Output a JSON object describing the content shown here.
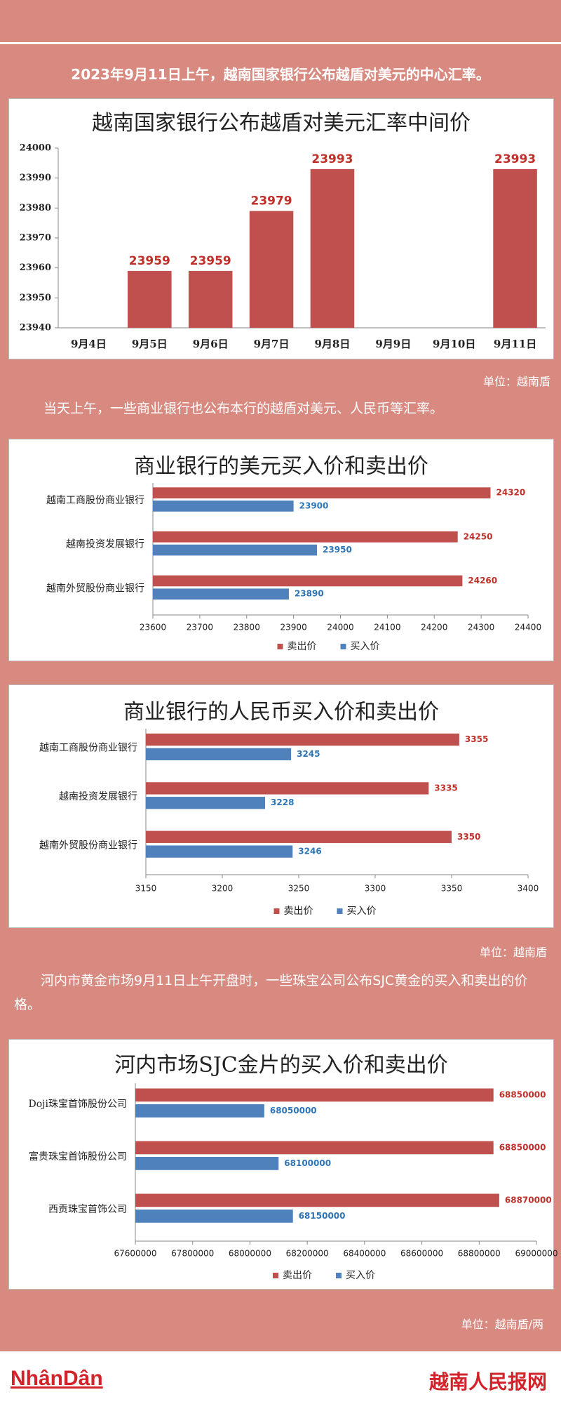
{
  "texts": {
    "intro": "2023年9月11日上午，越南国家银行公布越盾对美元的中心汇率。",
    "unit1": "单位：越南盾",
    "para2": "当天上午，一些商业银行也公布本行的越盾对美元、人民币等汇率。",
    "unit2": "单位：越南盾",
    "para3": "河内市黄金市场9月11日上午开盘时，一些珠宝公司公布SJC黄金的买入和卖出的价格。",
    "unit3": "单位：越南盾/两",
    "logo_left": "NhânDân",
    "logo_right": "越南人民报网"
  },
  "chart_data": [
    {
      "type": "bar",
      "title": "越南国家银行公布越盾对美元汇率中间价",
      "categories": [
        "9月4日",
        "9月5日",
        "9月6日",
        "9月7日",
        "9月8日",
        "9月9日",
        "9月10日",
        "9月11日"
      ],
      "values": [
        null,
        23959,
        23959,
        23979,
        23993,
        null,
        null,
        23993
      ],
      "color": "#c0504d",
      "label_color": "#c0302a",
      "ylim": [
        23940,
        24000
      ],
      "yticks": [
        23940,
        23950,
        23960,
        23970,
        23980,
        23990,
        24000
      ]
    },
    {
      "type": "hbar",
      "title": "商业银行的美元买入价和卖出价",
      "categories": [
        "越南工商股份商业银行",
        "越南投资发展银行",
        "越南外贸股份商业银行"
      ],
      "series": [
        {
          "name": "卖出价",
          "color": "#c0504d",
          "label_color": "#c0302a",
          "values": [
            24320,
            24250,
            24260
          ]
        },
        {
          "name": "买入价",
          "color": "#4f81bd",
          "label_color": "#2e75b6",
          "values": [
            23900,
            23950,
            23890
          ]
        }
      ],
      "xlim": [
        23600,
        24400
      ],
      "xticks": [
        23600,
        23700,
        23800,
        23900,
        24000,
        24100,
        24200,
        24300,
        24400
      ],
      "legend": "bottom"
    },
    {
      "type": "hbar",
      "title": "商业银行的人民币买入价和卖出价",
      "categories": [
        "越南工商股份商业银行",
        "越南投资发展银行",
        "越南外贸股份商业银行"
      ],
      "series": [
        {
          "name": "卖出价",
          "color": "#c0504d",
          "label_color": "#c0302a",
          "values": [
            3355,
            3335,
            3350
          ]
        },
        {
          "name": "买入价",
          "color": "#4f81bd",
          "label_color": "#2e75b6",
          "values": [
            3245,
            3228,
            3246
          ]
        }
      ],
      "xlim": [
        3150,
        3400
      ],
      "xticks": [
        3150,
        3200,
        3250,
        3300,
        3350,
        3400
      ],
      "legend": "bottom"
    },
    {
      "type": "hbar",
      "title": "河内市场SJC金片的买入价和卖出价",
      "categories": [
        "Doji珠宝首饰股份公司",
        "富贵珠宝首饰股份公司",
        "西贡珠宝首饰公司"
      ],
      "series": [
        {
          "name": "卖出价",
          "color": "#c0504d",
          "label_color": "#c0302a",
          "values": [
            68850000,
            68850000,
            68870000
          ]
        },
        {
          "name": "买入价",
          "color": "#4f81bd",
          "label_color": "#2e75b6",
          "values": [
            68050000,
            68100000,
            68150000
          ]
        }
      ],
      "xlim": [
        67600000,
        69000000
      ],
      "xticks": [
        67600000,
        67800000,
        68000000,
        68200000,
        68400000,
        68600000,
        68800000,
        69000000
      ],
      "legend": "bottom"
    }
  ]
}
